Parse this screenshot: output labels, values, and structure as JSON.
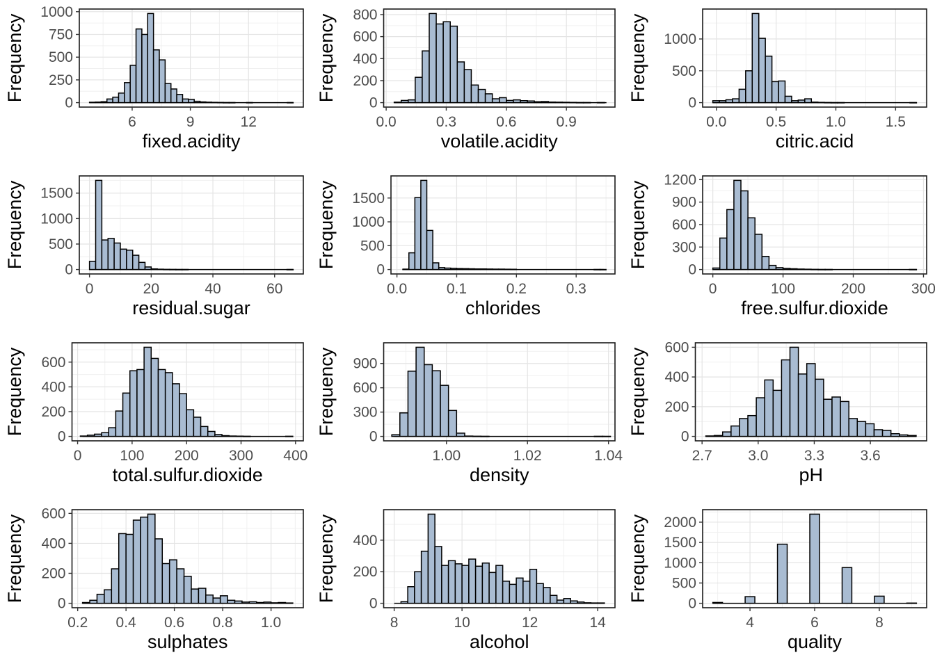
{
  "figure": {
    "description": "Grid of 12 histograms of wine physicochemical variables",
    "rows": 4,
    "cols": 3,
    "shared_ylabel": "Frequency",
    "colors": {
      "bar_fill": "#a9bcd2",
      "bar_stroke": "#000000",
      "grid_major": "#e4e4e4",
      "grid_minor": "#f0f0f0",
      "axis_text": "#4d4d4d",
      "title_text": "#000000",
      "panel_border": "#1a1a1a",
      "tick_mark": "#333333",
      "background": "#ffffff"
    }
  },
  "chart_data": [
    {
      "type": "histogram",
      "xlabel": "fixed.acidity",
      "ylabel": "Frequency",
      "xlim": [
        3.275,
        14.825
      ],
      "data_range": [
        3.8,
        14.3
      ],
      "xticks": [
        6,
        9,
        12
      ],
      "xtick_labels": [
        "6",
        "9",
        "12"
      ],
      "yticks": [
        0,
        250,
        500,
        750,
        1000
      ],
      "ytick_labels": [
        "0",
        "250",
        "500",
        "750",
        "1000"
      ],
      "bins": {
        "start": 3.8,
        "width": 0.3
      },
      "counts": [
        4,
        6,
        10,
        40,
        60,
        105,
        220,
        410,
        810,
        750,
        980,
        580,
        470,
        210,
        150,
        90,
        40,
        35,
        15,
        8,
        5,
        3,
        2,
        1,
        1,
        0,
        0,
        1,
        0,
        0,
        0,
        0,
        0,
        0,
        1
      ]
    },
    {
      "type": "histogram",
      "xlabel": "volatile.acidity",
      "ylabel": "Frequency",
      "xlim": [
        -0.0125,
        1.1425
      ],
      "data_range": [
        0.04,
        1.1
      ],
      "xticks": [
        0.0,
        0.3,
        0.6,
        0.9
      ],
      "xtick_labels": [
        "0.0",
        "0.3",
        "0.6",
        "0.9"
      ],
      "yticks": [
        0,
        200,
        400,
        600,
        800
      ],
      "ytick_labels": [
        "0",
        "200",
        "400",
        "600",
        "800"
      ],
      "bins": {
        "start": 0.04,
        "width": 0.035
      },
      "counts": [
        4,
        20,
        25,
        230,
        470,
        810,
        715,
        735,
        695,
        370,
        300,
        160,
        120,
        80,
        35,
        45,
        20,
        25,
        18,
        15,
        8,
        10,
        5,
        4,
        3,
        2,
        1,
        1,
        0,
        1
      ]
    },
    {
      "type": "histogram",
      "xlabel": "citric.acid",
      "ylabel": "Frequency",
      "xlim": [
        -0.115,
        1.76
      ],
      "data_range": [
        -0.03,
        1.675
      ],
      "xticks": [
        0.0,
        0.5,
        1.0,
        1.5
      ],
      "xtick_labels": [
        "0.0",
        "0.5",
        "1.0",
        "1.5"
      ],
      "yticks": [
        0,
        500,
        1000
      ],
      "ytick_labels": [
        "0",
        "500",
        "1000"
      ],
      "bins": {
        "start": -0.03,
        "width": 0.055
      },
      "counts": [
        30,
        30,
        45,
        60,
        210,
        500,
        1400,
        1010,
        730,
        330,
        340,
        100,
        30,
        40,
        60,
        8,
        4,
        2,
        1,
        1,
        0,
        0,
        0,
        0,
        0,
        0,
        0,
        0,
        0,
        0,
        1
      ]
    },
    {
      "type": "histogram",
      "xlabel": "residual.sugar",
      "ylabel": "Frequency",
      "xlim": [
        -3.3,
        69.3
      ],
      "data_range": [
        0,
        66
      ],
      "xticks": [
        0,
        20,
        40,
        60
      ],
      "xtick_labels": [
        "0",
        "20",
        "40",
        "60"
      ],
      "yticks": [
        0,
        500,
        1000,
        1500
      ],
      "ytick_labels": [
        "0",
        "500",
        "1000",
        "1500"
      ],
      "bins": {
        "start": 0,
        "width": 2
      },
      "counts": [
        160,
        1750,
        580,
        610,
        520,
        400,
        380,
        280,
        140,
        50,
        12,
        6,
        3,
        2,
        1,
        1,
        0,
        0,
        0,
        0,
        0,
        0,
        0,
        0,
        0,
        0,
        0,
        0,
        0,
        0,
        0,
        0,
        1
      ]
    },
    {
      "type": "histogram",
      "xlabel": "chlorides",
      "ylabel": "Frequency",
      "xlim": [
        -0.01,
        0.365
      ],
      "data_range": [
        0.009,
        0.346
      ],
      "xticks": [
        0.0,
        0.1,
        0.2,
        0.3
      ],
      "xtick_labels": [
        "0.0",
        "0.1",
        "0.2",
        "0.3"
      ],
      "yticks": [
        0,
        500,
        1000,
        1500
      ],
      "ytick_labels": [
        "0",
        "500",
        "1000",
        "1500"
      ],
      "bins": {
        "start": 0.01,
        "width": 0.01
      },
      "counts": [
        8,
        350,
        1510,
        1870,
        820,
        140,
        40,
        30,
        25,
        20,
        18,
        15,
        12,
        12,
        10,
        8,
        8,
        6,
        5,
        0,
        0,
        0,
        0,
        0,
        0,
        0,
        0,
        0,
        0,
        0,
        0,
        0,
        1,
        1
      ]
    },
    {
      "type": "histogram",
      "xlabel": "free.sulfur.dioxide",
      "ylabel": "Frequency",
      "xlim": [
        -14.5,
        304.5
      ],
      "data_range": [
        0,
        290
      ],
      "xticks": [
        0,
        100,
        200,
        300
      ],
      "xtick_labels": [
        "0",
        "100",
        "200",
        "300"
      ],
      "yticks": [
        0,
        300,
        600,
        900,
        1200
      ],
      "ytick_labels": [
        "0",
        "300",
        "600",
        "900",
        "1200"
      ],
      "bins": {
        "start": 0,
        "width": 10
      },
      "counts": [
        20,
        420,
        800,
        1190,
        1050,
        690,
        470,
        175,
        55,
        25,
        15,
        10,
        6,
        4,
        2,
        1,
        1,
        0,
        0,
        0,
        0,
        0,
        0,
        0,
        0,
        0,
        0,
        0,
        1
      ]
    },
    {
      "type": "histogram",
      "xlabel": "total.sulfur.dioxide",
      "ylabel": "Frequency",
      "xlim": [
        -10.3,
        414.3
      ],
      "data_range": [
        9,
        395
      ],
      "xticks": [
        0,
        100,
        200,
        300,
        400
      ],
      "xtick_labels": [
        "0",
        "100",
        "200",
        "300",
        "400"
      ],
      "yticks": [
        0,
        200,
        400,
        600
      ],
      "ytick_labels": [
        "0",
        "200",
        "400",
        "600"
      ],
      "bins": {
        "start": 5,
        "width": 13
      },
      "counts": [
        3,
        10,
        18,
        30,
        70,
        205,
        350,
        530,
        540,
        720,
        630,
        540,
        515,
        425,
        345,
        215,
        155,
        80,
        40,
        15,
        6,
        3,
        2,
        1,
        0,
        0,
        0,
        0,
        0,
        1
      ]
    },
    {
      "type": "histogram",
      "xlabel": "density",
      "ylabel": "Frequency",
      "xlim": [
        0.9845,
        1.0416
      ],
      "data_range": [
        0.9871,
        1.039
      ],
      "xticks": [
        1.0,
        1.02,
        1.04
      ],
      "xtick_labels": [
        "1.00",
        "1.02",
        "1.04"
      ],
      "yticks": [
        0,
        300,
        600,
        900
      ],
      "ytick_labels": [
        "0",
        "300",
        "600",
        "900"
      ],
      "bins": {
        "start": 0.9865,
        "width": 0.002
      },
      "counts": [
        20,
        290,
        805,
        1100,
        885,
        810,
        630,
        320,
        40,
        4,
        2,
        1,
        0,
        0,
        0,
        0,
        0,
        0,
        0,
        0,
        0,
        0,
        0,
        0,
        0,
        1,
        1
      ]
    },
    {
      "type": "histogram",
      "xlabel": "pH",
      "ylabel": "Frequency",
      "xlim": [
        2.664,
        3.901
      ],
      "data_range": [
        2.72,
        3.845
      ],
      "xticks": [
        2.7,
        3.0,
        3.3,
        3.6
      ],
      "xtick_labels": [
        "2.7",
        "3.0",
        "3.3",
        "3.6"
      ],
      "yticks": [
        0,
        200,
        400,
        600
      ],
      "ytick_labels": [
        "0",
        "200",
        "400",
        "600"
      ],
      "bins": {
        "start": 2.72,
        "width": 0.045
      },
      "counts": [
        3,
        6,
        30,
        70,
        120,
        140,
        260,
        380,
        310,
        515,
        600,
        420,
        490,
        385,
        250,
        265,
        235,
        120,
        100,
        85,
        45,
        40,
        18,
        10,
        6
      ]
    },
    {
      "type": "histogram",
      "xlabel": "sulphates",
      "ylabel": "Frequency",
      "xlim": [
        0.1765,
        1.1335
      ],
      "data_range": [
        0.22,
        1.09
      ],
      "xticks": [
        0.2,
        0.4,
        0.6,
        0.8,
        1.0
      ],
      "xtick_labels": [
        "0.2",
        "0.4",
        "0.6",
        "0.8",
        "1.0"
      ],
      "yticks": [
        0,
        200,
        400,
        600
      ],
      "ytick_labels": [
        "0",
        "200",
        "400",
        "600"
      ],
      "bins": {
        "start": 0.22,
        "width": 0.03
      },
      "counts": [
        5,
        20,
        60,
        90,
        230,
        465,
        460,
        555,
        575,
        595,
        430,
        265,
        290,
        230,
        180,
        95,
        100,
        55,
        35,
        50,
        20,
        15,
        8,
        10,
        5,
        8,
        3,
        5,
        2
      ]
    },
    {
      "type": "histogram",
      "xlabel": "alcohol",
      "ylabel": "Frequency",
      "xlim": [
        7.69,
        14.51
      ],
      "data_range": [
        8.0,
        14.2
      ],
      "xticks": [
        8,
        10,
        12,
        14
      ],
      "xtick_labels": [
        "8",
        "10",
        "12",
        "14"
      ],
      "yticks": [
        0,
        200,
        400
      ],
      "ytick_labels": [
        "0",
        "200",
        "400"
      ],
      "bins": {
        "start": 8.2,
        "width": 0.2
      },
      "counts": [
        10,
        105,
        200,
        330,
        565,
        360,
        240,
        270,
        250,
        240,
        280,
        235,
        255,
        195,
        240,
        140,
        120,
        160,
        140,
        215,
        125,
        100,
        50,
        20,
        30,
        15,
        8,
        3,
        2,
        2
      ]
    },
    {
      "type": "histogram",
      "xlabel": "quality",
      "ylabel": "Frequency",
      "xlim": [
        2.535,
        9.465
      ],
      "data_range": [
        2.85,
        9.15
      ],
      "xticks": [
        4,
        6,
        8
      ],
      "xtick_labels": [
        "4",
        "6",
        "8"
      ],
      "yticks": [
        0,
        500,
        1000,
        1500,
        2000
      ],
      "ytick_labels": [
        "0",
        "500",
        "1000",
        "1500",
        "2000"
      ],
      "bars": {
        "centers": [
          3,
          4,
          5,
          6,
          7,
          8,
          9
        ],
        "width": 0.3,
        "counts": [
          20,
          163,
          1457,
          2198,
          880,
          175,
          5
        ]
      }
    }
  ]
}
